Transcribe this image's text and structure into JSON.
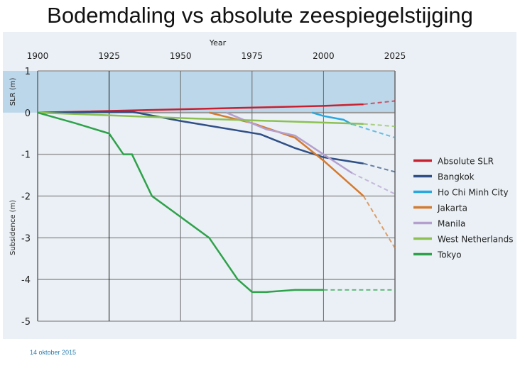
{
  "title": "Bodemdaling vs absolute zeespiegelstijging",
  "footer_date": "14 oktober 2015",
  "chart_data": {
    "type": "line",
    "title": "Bodemdaling vs absolute zeespiegelstijging",
    "xlabel": "Year",
    "ylabel_top": "SLR (m)",
    "ylabel_bottom": "Subsidence (m)",
    "xlim": [
      1900,
      2025
    ],
    "ylim": [
      -5,
      1
    ],
    "xticks": [
      1900,
      1925,
      1950,
      1975,
      2000,
      2025
    ],
    "yticks": [
      1,
      0,
      -1,
      -2,
      -3,
      -4,
      -5
    ],
    "legend_position": "right",
    "series": [
      {
        "name": "Absolute SLR",
        "color": "#c8202f",
        "points": [
          [
            1900,
            0
          ],
          [
            1950,
            0.08
          ],
          [
            2000,
            0.16
          ],
          [
            2014,
            0.2
          ]
        ],
        "projection": [
          [
            2014,
            0.2
          ],
          [
            2025,
            0.28
          ]
        ]
      },
      {
        "name": "Bangkok",
        "color": "#2f4f86",
        "points": [
          [
            1900,
            0
          ],
          [
            1933,
            0.02
          ],
          [
            1950,
            -0.2
          ],
          [
            1978,
            -0.52
          ],
          [
            1990,
            -0.85
          ],
          [
            2000,
            -1.07
          ],
          [
            2014,
            -1.22
          ]
        ],
        "projection": [
          [
            2014,
            -1.22
          ],
          [
            2025,
            -1.42
          ]
        ]
      },
      {
        "name": "Ho Chi Minh City",
        "color": "#29a8e0",
        "points": [
          [
            1996,
            0
          ],
          [
            2000,
            -0.08
          ],
          [
            2003,
            -0.12
          ],
          [
            2007,
            -0.17
          ],
          [
            2010,
            -0.28
          ]
        ],
        "projection": [
          [
            2010,
            -0.28
          ],
          [
            2025,
            -0.6
          ]
        ]
      },
      {
        "name": "Jakarta",
        "color": "#d57a2e",
        "points": [
          [
            1960,
            0
          ],
          [
            1975,
            -0.25
          ],
          [
            1990,
            -0.6
          ],
          [
            2000,
            -1.15
          ],
          [
            2014,
            -2.0
          ]
        ],
        "projection": [
          [
            2014,
            -2.0
          ],
          [
            2025,
            -3.25
          ]
        ]
      },
      {
        "name": "Manila",
        "color": "#b49fcf",
        "points": [
          [
            1966,
            0
          ],
          [
            1980,
            -0.4
          ],
          [
            1990,
            -0.55
          ],
          [
            2000,
            -1.0
          ],
          [
            2010,
            -1.45
          ]
        ],
        "projection": [
          [
            2010,
            -1.45
          ],
          [
            2025,
            -1.95
          ]
        ]
      },
      {
        "name": "West Netherlands",
        "color": "#8cc152",
        "points": [
          [
            1900,
            0
          ],
          [
            1950,
            -0.13
          ],
          [
            2014,
            -0.27
          ]
        ],
        "projection": [
          [
            2014,
            -0.27
          ],
          [
            2025,
            -0.33
          ]
        ]
      },
      {
        "name": "Tokyo",
        "color": "#2ea24a",
        "points": [
          [
            1900,
            0
          ],
          [
            1913,
            -0.25
          ],
          [
            1925,
            -0.5
          ],
          [
            1930,
            -1
          ],
          [
            1933,
            -1
          ],
          [
            1940,
            -2
          ],
          [
            1950,
            -2.5
          ],
          [
            1960,
            -3
          ],
          [
            1970,
            -4
          ],
          [
            1975,
            -4.3
          ],
          [
            1980,
            -4.3
          ],
          [
            1990,
            -4.25
          ],
          [
            2000,
            -4.25
          ]
        ],
        "projection": [
          [
            2000,
            -4.25
          ],
          [
            2025,
            -4.25
          ]
        ]
      }
    ]
  }
}
